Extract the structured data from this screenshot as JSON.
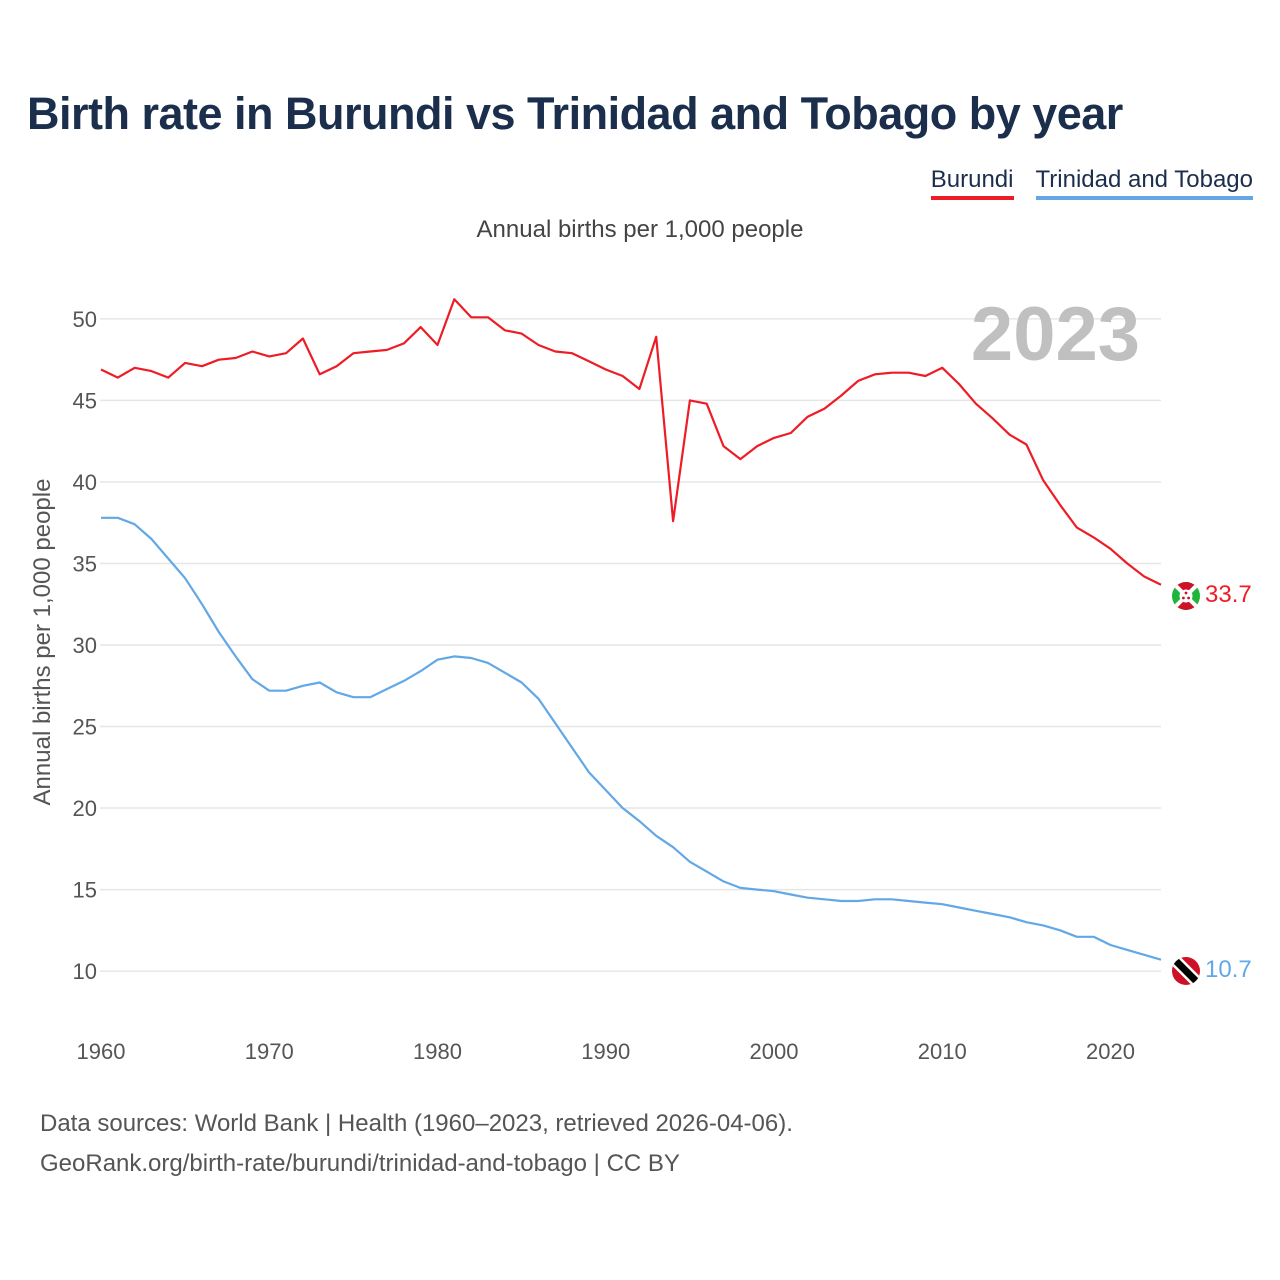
{
  "chart_data": {
    "type": "line",
    "title": "Birth rate in Burundi vs Trinidad and Tobago by year",
    "subtitle": "Annual births per 1,000 people",
    "ylabel": "Annual births per 1,000 people",
    "xlabel": "",
    "year_label": "2023",
    "xlim": [
      1960,
      2023
    ],
    "ylim": [
      7,
      53
    ],
    "xticks": [
      1960,
      1970,
      1980,
      1990,
      2000,
      2010,
      2020
    ],
    "yticks": [
      10,
      15,
      20,
      25,
      30,
      35,
      40,
      45,
      50
    ],
    "x": [
      1960,
      1961,
      1962,
      1963,
      1964,
      1965,
      1966,
      1967,
      1968,
      1969,
      1970,
      1971,
      1972,
      1973,
      1974,
      1975,
      1976,
      1977,
      1978,
      1979,
      1980,
      1981,
      1982,
      1983,
      1984,
      1985,
      1986,
      1987,
      1988,
      1989,
      1990,
      1991,
      1992,
      1993,
      1994,
      1995,
      1996,
      1997,
      1998,
      1999,
      2000,
      2001,
      2002,
      2003,
      2004,
      2005,
      2006,
      2007,
      2008,
      2009,
      2010,
      2011,
      2012,
      2013,
      2014,
      2015,
      2016,
      2017,
      2018,
      2019,
      2020,
      2021,
      2022,
      2023
    ],
    "series": [
      {
        "name": "Burundi",
        "color": "#ee1c25",
        "end_label": "33.7",
        "values": [
          46.9,
          46.4,
          47.0,
          46.8,
          46.4,
          47.3,
          47.1,
          47.5,
          47.6,
          48.0,
          47.7,
          47.9,
          48.8,
          46.6,
          47.1,
          47.9,
          48.0,
          48.1,
          48.5,
          49.5,
          48.4,
          51.2,
          50.1,
          50.1,
          49.3,
          49.1,
          48.4,
          48.0,
          47.9,
          47.4,
          46.9,
          46.5,
          45.7,
          48.9,
          37.6,
          45.0,
          44.8,
          42.2,
          41.4,
          42.2,
          42.7,
          43.0,
          44.0,
          44.5,
          45.3,
          46.2,
          46.6,
          46.7,
          46.7,
          46.5,
          47.0,
          46.0,
          44.8,
          43.9,
          42.9,
          42.3,
          40.1,
          38.6,
          37.2,
          36.6,
          35.9,
          35.0,
          34.2,
          33.7
        ]
      },
      {
        "name": "Trinidad and Tobago",
        "color": "#62a7e6",
        "end_label": "10.7",
        "values": [
          37.8,
          37.8,
          37.4,
          36.5,
          35.3,
          34.1,
          32.5,
          30.8,
          29.3,
          27.9,
          27.2,
          27.2,
          27.5,
          27.7,
          27.1,
          26.8,
          26.8,
          27.3,
          27.8,
          28.4,
          29.1,
          29.3,
          29.2,
          28.9,
          28.3,
          27.7,
          26.7,
          25.2,
          23.7,
          22.2,
          21.1,
          20.0,
          19.2,
          18.3,
          17.6,
          16.7,
          16.1,
          15.5,
          15.1,
          15.0,
          14.9,
          14.7,
          14.5,
          14.4,
          14.3,
          14.3,
          14.4,
          14.4,
          14.3,
          14.2,
          14.1,
          13.9,
          13.7,
          13.5,
          13.3,
          13.0,
          12.8,
          12.5,
          12.1,
          12.1,
          11.6,
          11.3,
          11.0,
          10.7
        ]
      }
    ],
    "footer_line1": "Data sources: World Bank | Health (1960–2023, retrieved 2026-04-06).",
    "footer_line2": "GeoRank.org/birth-rate/burundi/trinidad-and-tobago | CC BY"
  }
}
